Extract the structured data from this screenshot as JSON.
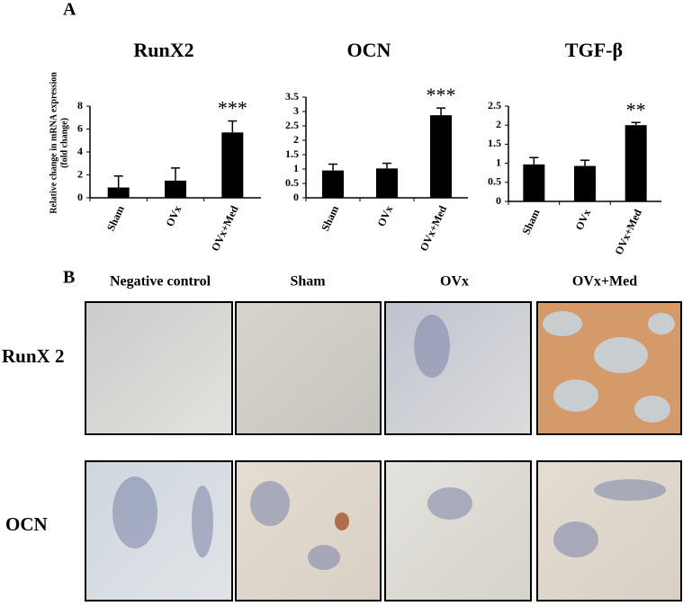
{
  "panel_a_label": "A",
  "panel_b_label": "B",
  "chart_data": [
    {
      "type": "bar",
      "title": "RunX2",
      "ylabel": [
        "Relative change in mRNA expression",
        "(fold change)"
      ],
      "categories": [
        "Sham",
        "OVx",
        "OVx+Med"
      ],
      "series": [
        {
          "name": null,
          "color": "#000000",
          "values": [
            0.9,
            1.5,
            5.7
          ],
          "errors": [
            1.0,
            1.1,
            1.0
          ]
        }
      ],
      "value_annotations": [
        null,
        null,
        "***"
      ],
      "ylim": [
        0,
        8
      ],
      "yticks": [
        0,
        2,
        4,
        6,
        8
      ]
    },
    {
      "type": "bar",
      "title": "OCN",
      "categories": [
        "Sham",
        "OVx",
        "OVx+Med"
      ],
      "series": [
        {
          "name": null,
          "color": "#000000",
          "values": [
            0.95,
            1.02,
            2.87
          ],
          "errors": [
            0.22,
            0.18,
            0.25
          ]
        }
      ],
      "value_annotations": [
        null,
        null,
        "***"
      ],
      "ylim": [
        0,
        3.5
      ],
      "yticks": [
        0,
        0.5,
        1,
        1.5,
        2,
        2.5,
        3,
        3.5
      ]
    },
    {
      "type": "bar",
      "title": "TGF-β",
      "categories": [
        "Sham",
        "OVx",
        "OVx+Med"
      ],
      "series": [
        {
          "name": null,
          "color": "#000000",
          "values": [
            0.97,
            0.93,
            2.0
          ],
          "errors": [
            0.18,
            0.15,
            0.07
          ]
        }
      ],
      "value_annotations": [
        null,
        null,
        "**"
      ],
      "ylim": [
        0,
        2.5
      ],
      "yticks": [
        0,
        0.5,
        1,
        1.5,
        2,
        2.5
      ]
    }
  ],
  "image_grid": {
    "columns": [
      "Negative control",
      "Sham",
      "OVx",
      "OVx+Med"
    ],
    "rows": [
      "RunX 2",
      "OCN"
    ]
  }
}
